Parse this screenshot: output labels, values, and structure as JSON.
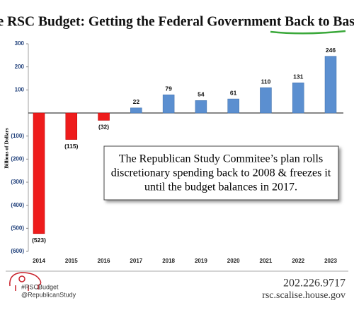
{
  "chart_data": {
    "type": "bar",
    "title": "The RSC Budget: Getting the  Federal Government Back to Basics.",
    "y_label": "Billions of Dollars",
    "categories": [
      "2014",
      "2015",
      "2016",
      "2017",
      "2018",
      "2019",
      "2020",
      "2021",
      "2022",
      "2023"
    ],
    "values": [
      -523,
      -115,
      -32,
      22,
      79,
      54,
      61,
      110,
      131,
      246
    ],
    "value_labels": [
      "(523)",
      "(115)",
      "(32)",
      "22",
      "79",
      "54",
      "61",
      "110",
      "131",
      "246"
    ],
    "colors": [
      "#ee1c1c",
      "#ee1c1c",
      "#ee1c1c",
      "#5b8fd0",
      "#5b8fd0",
      "#5b8fd0",
      "#5b8fd0",
      "#5b8fd0",
      "#5b8fd0",
      "#5b8fd0"
    ],
    "ylim": [
      -600,
      300
    ],
    "yticks": [
      300,
      200,
      100,
      {
        "value": -100,
        "label": "(100)"
      },
      {
        "value": -200,
        "label": "(200)"
      },
      {
        "value": -300,
        "label": "(300)"
      },
      {
        "value": -400,
        "label": "(400)"
      },
      {
        "value": -500,
        "label": "(500)"
      },
      {
        "value": -600,
        "label": "(600)"
      }
    ],
    "annotation": [
      "The  Republican Study Commitee’s plan rolls",
      "discretionary spending back to 2008 & freezes it",
      "until the budget balances in 2017."
    ]
  },
  "footer": {
    "hashtag": "#RSCBudget",
    "handle": "@RepublicanStudy",
    "phone": "202.226.9717",
    "website": "rsc.scalise.house.gov"
  }
}
